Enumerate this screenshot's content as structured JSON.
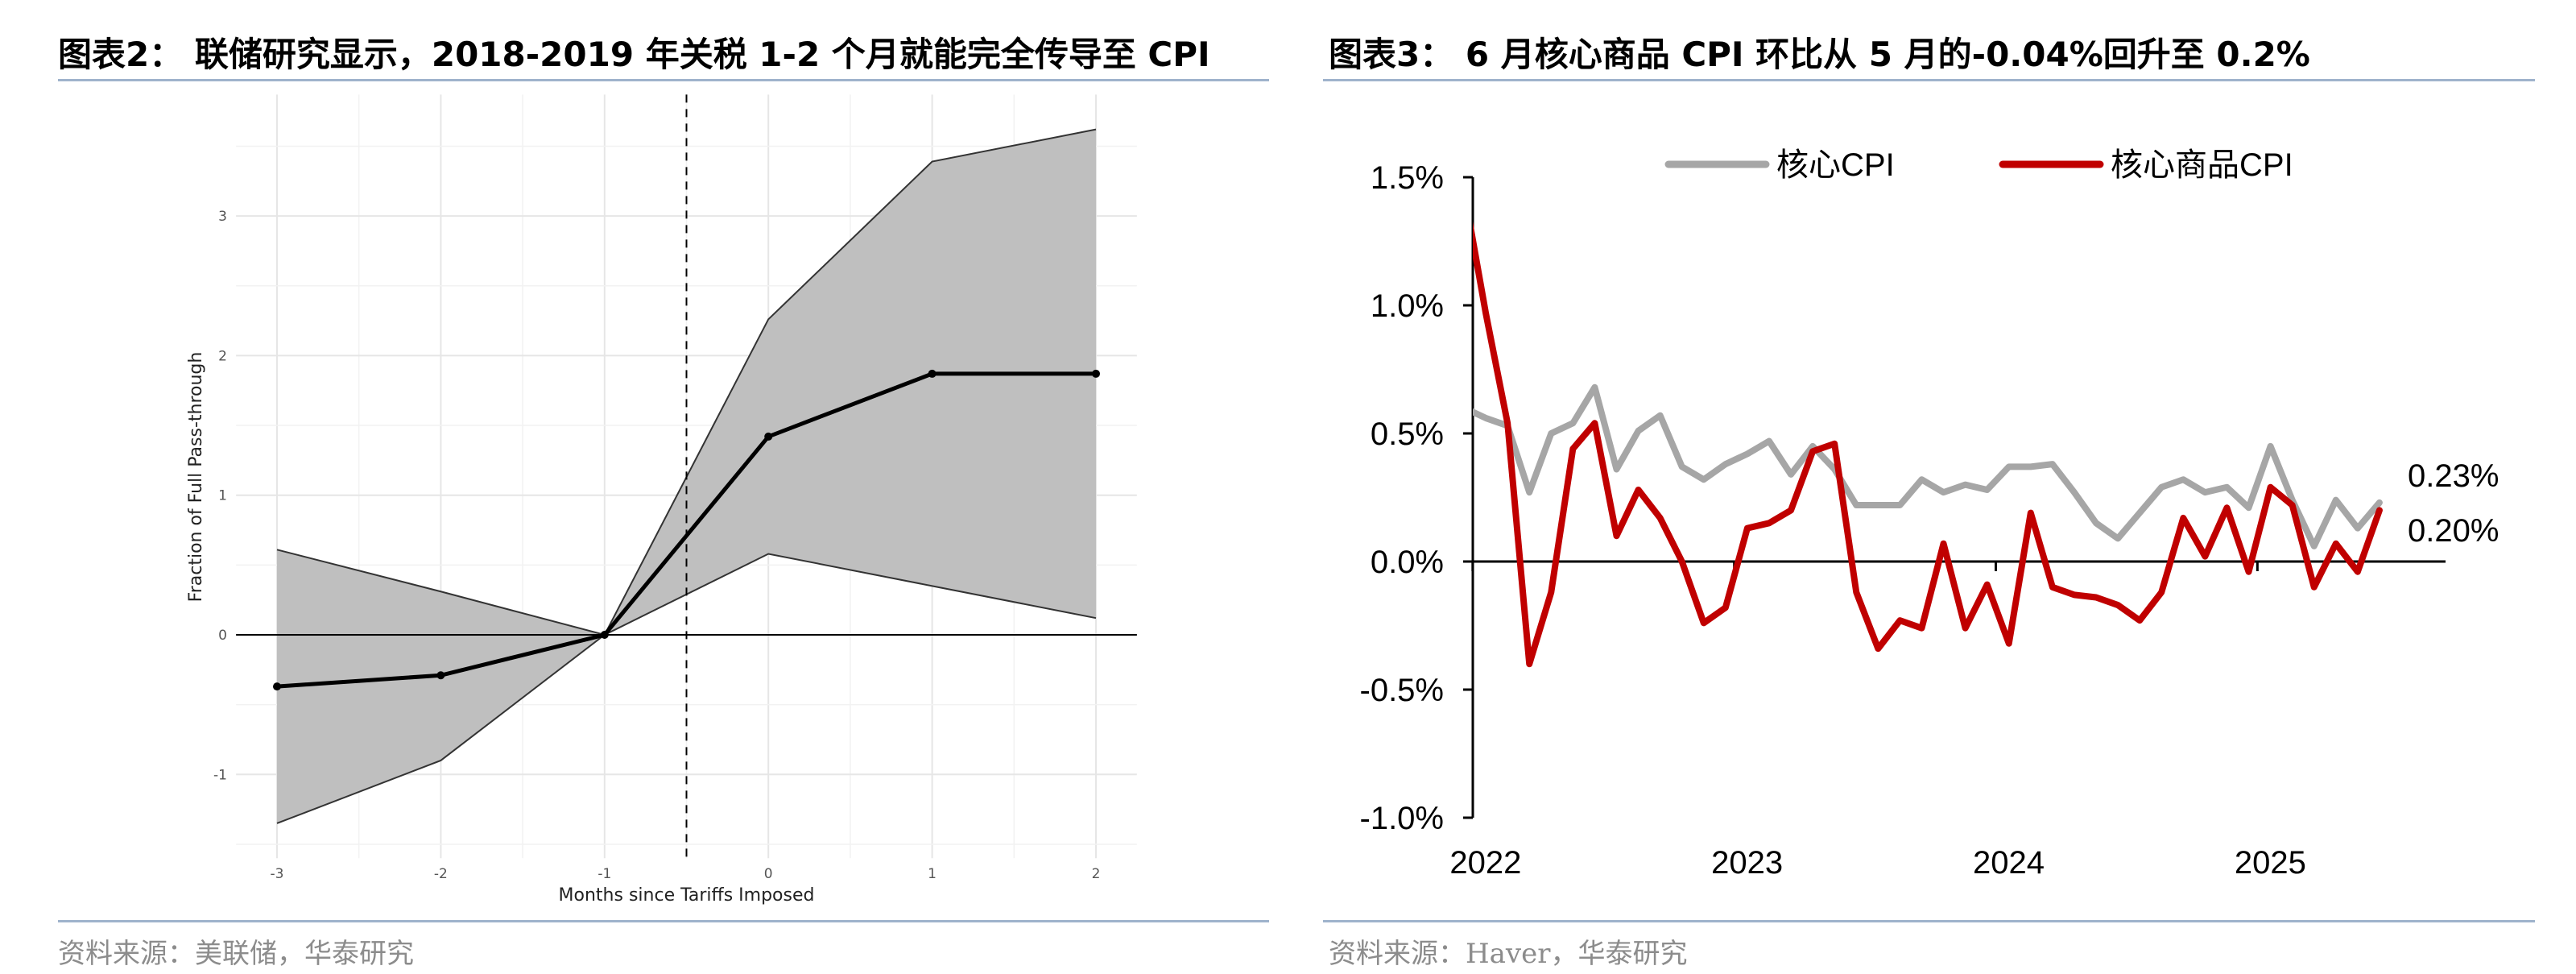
{
  "left": {
    "title": "图表2： 联储研究显示，2018-2019 年关税 1-2 个月就能完全传导至 CPI",
    "source": "资料来源：美联储，华泰研究"
  },
  "right": {
    "title": "图表3： 6 月核心商品 CPI 环比从 5 月的-0.04%回升至 0.2%",
    "source": "资料来源：Haver，华泰研究"
  },
  "chart_data": [
    {
      "type": "line",
      "xlabel": "Months since Tariffs Imposed",
      "ylabel": "Fraction of Full Pass-through",
      "x": [
        -3,
        -2,
        -1,
        0,
        1,
        2
      ],
      "series": [
        {
          "role": "estimate",
          "values": [
            -0.37,
            -0.29,
            0.0,
            1.42,
            1.87,
            1.87
          ]
        },
        {
          "role": "upper-bound",
          "values": [
            0.61,
            0.31,
            0.0,
            2.26,
            3.39,
            3.62
          ]
        },
        {
          "role": "lower-bound",
          "values": [
            -1.35,
            -0.9,
            0.0,
            0.58,
            0.35,
            0.12
          ]
        }
      ],
      "xticks": [
        "-3",
        "-2",
        "-1",
        "0",
        "1",
        "2"
      ],
      "yticks": [
        "-1",
        "0",
        "1",
        "2",
        "3"
      ],
      "xlim": [
        -3.25,
        2.25
      ],
      "ylim": [
        -1.6,
        3.87
      ],
      "reference_lines": {
        "vertical_dashed_x": -0.5,
        "horizontal_y": 0
      },
      "grid": true,
      "colors": {
        "band": "#bfbfbf",
        "line": "#000000"
      }
    },
    {
      "type": "line",
      "x": [
        "2021-12",
        "2022-01",
        "2022-02",
        "2022-03",
        "2022-04",
        "2022-05",
        "2022-06",
        "2022-07",
        "2022-08",
        "2022-09",
        "2022-10",
        "2022-11",
        "2022-12",
        "2023-01",
        "2023-02",
        "2023-03",
        "2023-04",
        "2023-05",
        "2023-06",
        "2023-07",
        "2023-08",
        "2023-09",
        "2023-10",
        "2023-11",
        "2023-12",
        "2024-01",
        "2024-02",
        "2024-03",
        "2024-04",
        "2024-05",
        "2024-06",
        "2024-07",
        "2024-08",
        "2024-09",
        "2024-10",
        "2024-11",
        "2024-12",
        "2025-01",
        "2025-02",
        "2025-03",
        "2025-04",
        "2025-05",
        "2025-06"
      ],
      "series": [
        {
          "name": "核心CPI",
          "color": "#a6a6a6",
          "values": [
            0.6,
            0.56,
            0.53,
            0.27,
            0.5,
            0.54,
            0.68,
            0.36,
            0.51,
            0.57,
            0.37,
            0.32,
            0.38,
            0.42,
            0.47,
            0.34,
            0.45,
            0.36,
            0.22,
            0.22,
            0.22,
            0.32,
            0.27,
            0.3,
            0.28,
            0.37,
            0.37,
            0.38,
            0.27,
            0.15,
            0.09,
            0.19,
            0.29,
            0.32,
            0.27,
            0.29,
            0.21,
            0.45,
            0.24,
            0.06,
            0.24,
            0.13,
            0.23
          ],
          "end_label": "0.23%"
        },
        {
          "name": "核心商品CPI",
          "color": "#c00000",
          "values": [
            1.45,
            0.97,
            0.54,
            -0.4,
            -0.12,
            0.44,
            0.54,
            0.1,
            0.28,
            0.17,
            0.0,
            -0.24,
            -0.18,
            0.13,
            0.15,
            0.2,
            0.43,
            0.46,
            -0.12,
            -0.34,
            -0.23,
            -0.26,
            0.07,
            -0.26,
            -0.09,
            -0.32,
            0.19,
            -0.1,
            -0.13,
            -0.14,
            -0.17,
            -0.23,
            -0.12,
            0.17,
            0.02,
            0.21,
            -0.04,
            0.29,
            0.22,
            -0.1,
            0.07,
            -0.04,
            0.2
          ],
          "end_label": "0.20%"
        }
      ],
      "xticks": [
        "2022",
        "2023",
        "2024",
        "2025"
      ],
      "yticks": [
        "-1.0%",
        "-0.5%",
        "0.0%",
        "0.5%",
        "1.0%",
        "1.5%"
      ],
      "ylim": [
        -1.0,
        1.5
      ],
      "legend": "top",
      "grid": false
    }
  ]
}
